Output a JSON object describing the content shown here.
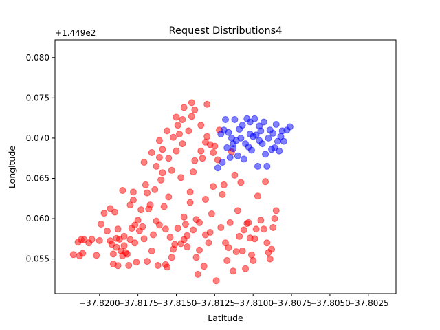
{
  "chart_data": {
    "type": "scatter",
    "title": "Request Distributions4",
    "xlabel": "Latitude",
    "ylabel": "Longitude",
    "y_offset_label": "+1.449e2",
    "xlim": [
      -37.8229,
      -37.8007
    ],
    "ylim": [
      144.9507,
      144.9822
    ],
    "x_ticks": [
      -37.82,
      -37.8175,
      -37.815,
      -37.8125,
      -37.81,
      -37.8075,
      -37.805,
      -37.8025
    ],
    "x_tick_labels": [
      "−37.8200",
      "−37.8175",
      "−37.8150",
      "−37.8125",
      "−37.8100",
      "−37.8075",
      "−37.8050",
      "−37.8025"
    ],
    "y_ticks": [
      0.055,
      0.06,
      0.065,
      0.07,
      0.075,
      0.08
    ],
    "y_tick_labels": [
      "0.055",
      "0.060",
      "0.065",
      "0.070",
      "0.075",
      "0.080"
    ],
    "grid": false,
    "legend": "none",
    "series": [
      {
        "color": "#ff0000",
        "opacity": 0.5,
        "points": [
          [
            -37.8217,
            144.95554
          ],
          [
            -37.8214,
            144.95708
          ],
          [
            -37.8213,
            144.9554
          ],
          [
            -37.8212,
            144.9574
          ],
          [
            -37.8211,
            144.95569
          ],
          [
            -37.821,
            144.95739
          ],
          [
            -37.8207,
            144.957
          ],
          [
            -37.8205,
            144.95743
          ],
          [
            -37.8202,
            144.95545
          ],
          [
            -37.82,
            144.95728
          ],
          [
            -37.8199,
            144.95932
          ],
          [
            -37.8197,
            144.96068
          ],
          [
            -37.8195,
            144.95847
          ],
          [
            -37.8193,
            144.96125
          ],
          [
            -37.8193,
            144.95725
          ],
          [
            -37.8192,
            144.95682
          ],
          [
            -37.8191,
            144.95562
          ],
          [
            -37.8191,
            144.95437
          ],
          [
            -37.819,
            144.96081
          ],
          [
            -37.8189,
            144.95755
          ],
          [
            -37.8189,
            144.95645
          ],
          [
            -37.8188,
            144.9587
          ],
          [
            -37.8188,
            144.95418
          ],
          [
            -37.8187,
            144.95745
          ],
          [
            -37.8186,
            144.956
          ],
          [
            -37.8185,
            144.9554
          ],
          [
            -37.8185,
            144.9635
          ],
          [
            -37.8184,
            144.95665
          ],
          [
            -37.8184,
            144.9578
          ],
          [
            -37.8183,
            144.9558
          ],
          [
            -37.8182,
            144.9556
          ],
          [
            -37.8181,
            144.9542
          ],
          [
            -37.818,
            144.9617
          ],
          [
            -37.818,
            144.9574
          ],
          [
            -37.8179,
            144.9588
          ],
          [
            -37.8178,
            144.9633
          ],
          [
            -37.8178,
            144.9623
          ],
          [
            -37.8177,
            144.9592
          ],
          [
            -37.8177,
            144.957
          ],
          [
            -37.8176,
            144.9546
          ],
          [
            -37.8175,
            144.9598
          ],
          [
            -37.8174,
            144.9585
          ],
          [
            -37.8173,
            144.9611
          ],
          [
            -37.8172,
            144.959
          ],
          [
            -37.8171,
            144.9575
          ],
          [
            -37.817,
            144.9642
          ],
          [
            -37.8169,
            144.9547
          ],
          [
            -37.8169,
            144.9632
          ],
          [
            -37.8168,
            144.9612
          ],
          [
            -37.8167,
            144.9617
          ],
          [
            -37.8166,
            144.956
          ],
          [
            -37.8165,
            144.958
          ],
          [
            -37.8164,
            144.9636
          ],
          [
            -37.8163,
            144.9597
          ],
          [
            -37.8163,
            144.9665
          ],
          [
            -37.8162,
            144.9542
          ],
          [
            -37.8161,
            144.9592
          ],
          [
            -37.8161,
            144.9676
          ],
          [
            -37.816,
            144.9648
          ],
          [
            -37.8159,
            144.9657
          ],
          [
            -37.8159,
            144.9686
          ],
          [
            -37.8158,
            144.9615
          ],
          [
            -37.8157,
            144.9587
          ],
          [
            -37.8156,
            144.954
          ],
          [
            -37.8155,
            144.9627
          ],
          [
            -37.8155,
            144.9675
          ],
          [
            -37.8154,
            144.9577
          ],
          [
            -37.8153,
            144.966
          ],
          [
            -37.8152,
            144.9701
          ],
          [
            -37.8151,
            144.9568
          ],
          [
            -37.815,
            144.9684
          ],
          [
            -37.8149,
            144.9716
          ],
          [
            -37.8148,
            144.9705
          ],
          [
            -37.8147,
            144.9651
          ],
          [
            -37.8146,
            144.9693
          ],
          [
            -37.8146,
            144.9723
          ],
          [
            -37.8145,
            144.9602
          ],
          [
            -37.8144,
            144.9593
          ],
          [
            -37.8143,
            144.9579
          ],
          [
            -37.8142,
            144.9709
          ],
          [
            -37.8141,
            144.962
          ],
          [
            -37.8141,
            144.9633
          ],
          [
            -37.814,
            144.9727
          ],
          [
            -37.8139,
            144.9658
          ],
          [
            -37.8138,
            144.9672
          ],
          [
            -37.8137,
            144.9552
          ],
          [
            -37.8137,
            144.9599
          ],
          [
            -37.8136,
            144.9531
          ],
          [
            -37.8135,
            144.9561
          ],
          [
            -37.8134,
            144.9684
          ],
          [
            -37.8133,
            144.9675
          ],
          [
            -37.8132,
            144.9541
          ],
          [
            -37.8131,
            144.9624
          ],
          [
            -37.813,
            144.9702
          ],
          [
            -37.813,
            144.9742
          ],
          [
            -37.8129,
            144.957
          ],
          [
            -37.8128,
            144.9583
          ],
          [
            -37.8127,
            144.9606
          ],
          [
            -37.8126,
            144.964
          ],
          [
            -37.8125,
            144.969
          ],
          [
            -37.8124,
            144.9523
          ],
          [
            -37.8123,
            144.9673
          ],
          [
            -37.8122,
            144.971
          ],
          [
            -37.8121,
            144.9589
          ],
          [
            -37.812,
            144.963
          ],
          [
            -37.8119,
            144.9642
          ],
          [
            -37.8118,
            144.957
          ],
          [
            -37.8117,
            144.9548
          ],
          [
            -37.8116,
            144.9564
          ],
          [
            -37.8115,
            144.9595
          ],
          [
            -37.8114,
            144.9683
          ],
          [
            -37.8113,
            144.9535
          ],
          [
            -37.8112,
            144.9654
          ],
          [
            -37.8111,
            144.9559
          ],
          [
            -37.811,
            144.961
          ],
          [
            -37.8109,
            144.9578
          ],
          [
            -37.8108,
            144.9645
          ],
          [
            -37.8107,
            144.956
          ],
          [
            -37.8106,
            144.9586
          ],
          [
            -37.8105,
            144.9538
          ],
          [
            -37.8104,
            144.9594
          ],
          [
            -37.8103,
            144.9595
          ],
          [
            -37.8102,
            144.9576
          ],
          [
            -37.8101,
            144.9555
          ],
          [
            -37.81,
            144.9548
          ],
          [
            -37.8099,
            144.9575
          ],
          [
            -37.8098,
            144.9587
          ],
          [
            -37.8097,
            144.9628
          ],
          [
            -37.8095,
            144.9598
          ],
          [
            -37.8093,
            144.9587
          ],
          [
            -37.8092,
            144.9646
          ],
          [
            -37.8091,
            144.957
          ],
          [
            -37.809,
            144.9558
          ],
          [
            -37.8089,
            144.955
          ],
          [
            -37.8088,
            144.9562
          ],
          [
            -37.8087,
            144.9589
          ],
          [
            -37.8086,
            144.96
          ],
          [
            -37.8085,
            144.961
          ],
          [
            -37.814,
            144.9744
          ],
          [
            -37.8138,
            144.9735
          ],
          [
            -37.8134,
            144.9716
          ],
          [
            -37.8128,
            144.9692
          ],
          [
            -37.8126,
            144.9682
          ],
          [
            -37.8131,
            144.9695
          ],
          [
            -37.8145,
            144.9738
          ],
          [
            -37.815,
            144.9726
          ],
          [
            -37.8156,
            144.9709
          ],
          [
            -37.8161,
            144.9697
          ],
          [
            -37.8166,
            144.9682
          ],
          [
            -37.8171,
            144.967
          ],
          [
            -37.8152,
            144.9562
          ],
          [
            -37.8147,
            144.9569
          ],
          [
            -37.8143,
            144.9565
          ],
          [
            -37.8139,
            144.9586
          ],
          [
            -37.8135,
            144.9595
          ],
          [
            -37.8131,
            144.958
          ],
          [
            -37.8157,
            144.9543
          ],
          [
            -37.8153,
            144.9552
          ],
          [
            -37.8149,
            144.9588
          ],
          [
            -37.8145,
            144.9574
          ]
        ]
      },
      {
        "color": "#0000ff",
        "opacity": 0.5,
        "points": [
          [
            -37.8123,
            144.9663
          ],
          [
            -37.8121,
            144.9705
          ],
          [
            -37.812,
            144.967
          ],
          [
            -37.8119,
            144.971
          ],
          [
            -37.8118,
            144.9723
          ],
          [
            -37.8117,
            144.9688
          ],
          [
            -37.8116,
            144.9707
          ],
          [
            -37.8115,
            144.9676
          ],
          [
            -37.8114,
            144.97
          ],
          [
            -37.8113,
            144.9693
          ],
          [
            -37.8112,
            144.9723
          ],
          [
            -37.8111,
            144.9697
          ],
          [
            -37.811,
            144.9678
          ],
          [
            -37.8109,
            144.9711
          ],
          [
            -37.8108,
            144.97
          ],
          [
            -37.8107,
            144.9716
          ],
          [
            -37.8106,
            144.9674
          ],
          [
            -37.8105,
            144.9693
          ],
          [
            -37.8104,
            144.9724
          ],
          [
            -37.8103,
            144.9689
          ],
          [
            -37.8102,
            144.9705
          ],
          [
            -37.8101,
            144.9685
          ],
          [
            -37.81,
            144.9702
          ],
          [
            -37.8099,
            144.9724
          ],
          [
            -37.8098,
            144.9704
          ],
          [
            -37.8097,
            144.9665
          ],
          [
            -37.8096,
            144.9697
          ],
          [
            -37.8095,
            144.9709
          ],
          [
            -37.8094,
            144.9693
          ],
          [
            -37.8093,
            144.972
          ],
          [
            -37.8092,
            144.968
          ],
          [
            -37.8091,
            144.9665
          ],
          [
            -37.809,
            144.97
          ],
          [
            -37.8089,
            144.971
          ],
          [
            -37.8088,
            144.9686
          ],
          [
            -37.8087,
            144.9706
          ],
          [
            -37.8086,
            144.9688
          ],
          [
            -37.8085,
            144.9717
          ],
          [
            -37.8084,
            144.9696
          ],
          [
            -37.8083,
            144.9684
          ],
          [
            -37.8082,
            144.9702
          ],
          [
            -37.8081,
            144.9709
          ],
          [
            -37.808,
            144.9696
          ],
          [
            -37.8078,
            144.971
          ],
          [
            -37.8076,
            144.9714
          ],
          [
            -37.8102,
            144.972
          ],
          [
            -37.8096,
            144.9715
          ],
          [
            -37.8113,
            144.9687
          ]
        ]
      }
    ]
  }
}
